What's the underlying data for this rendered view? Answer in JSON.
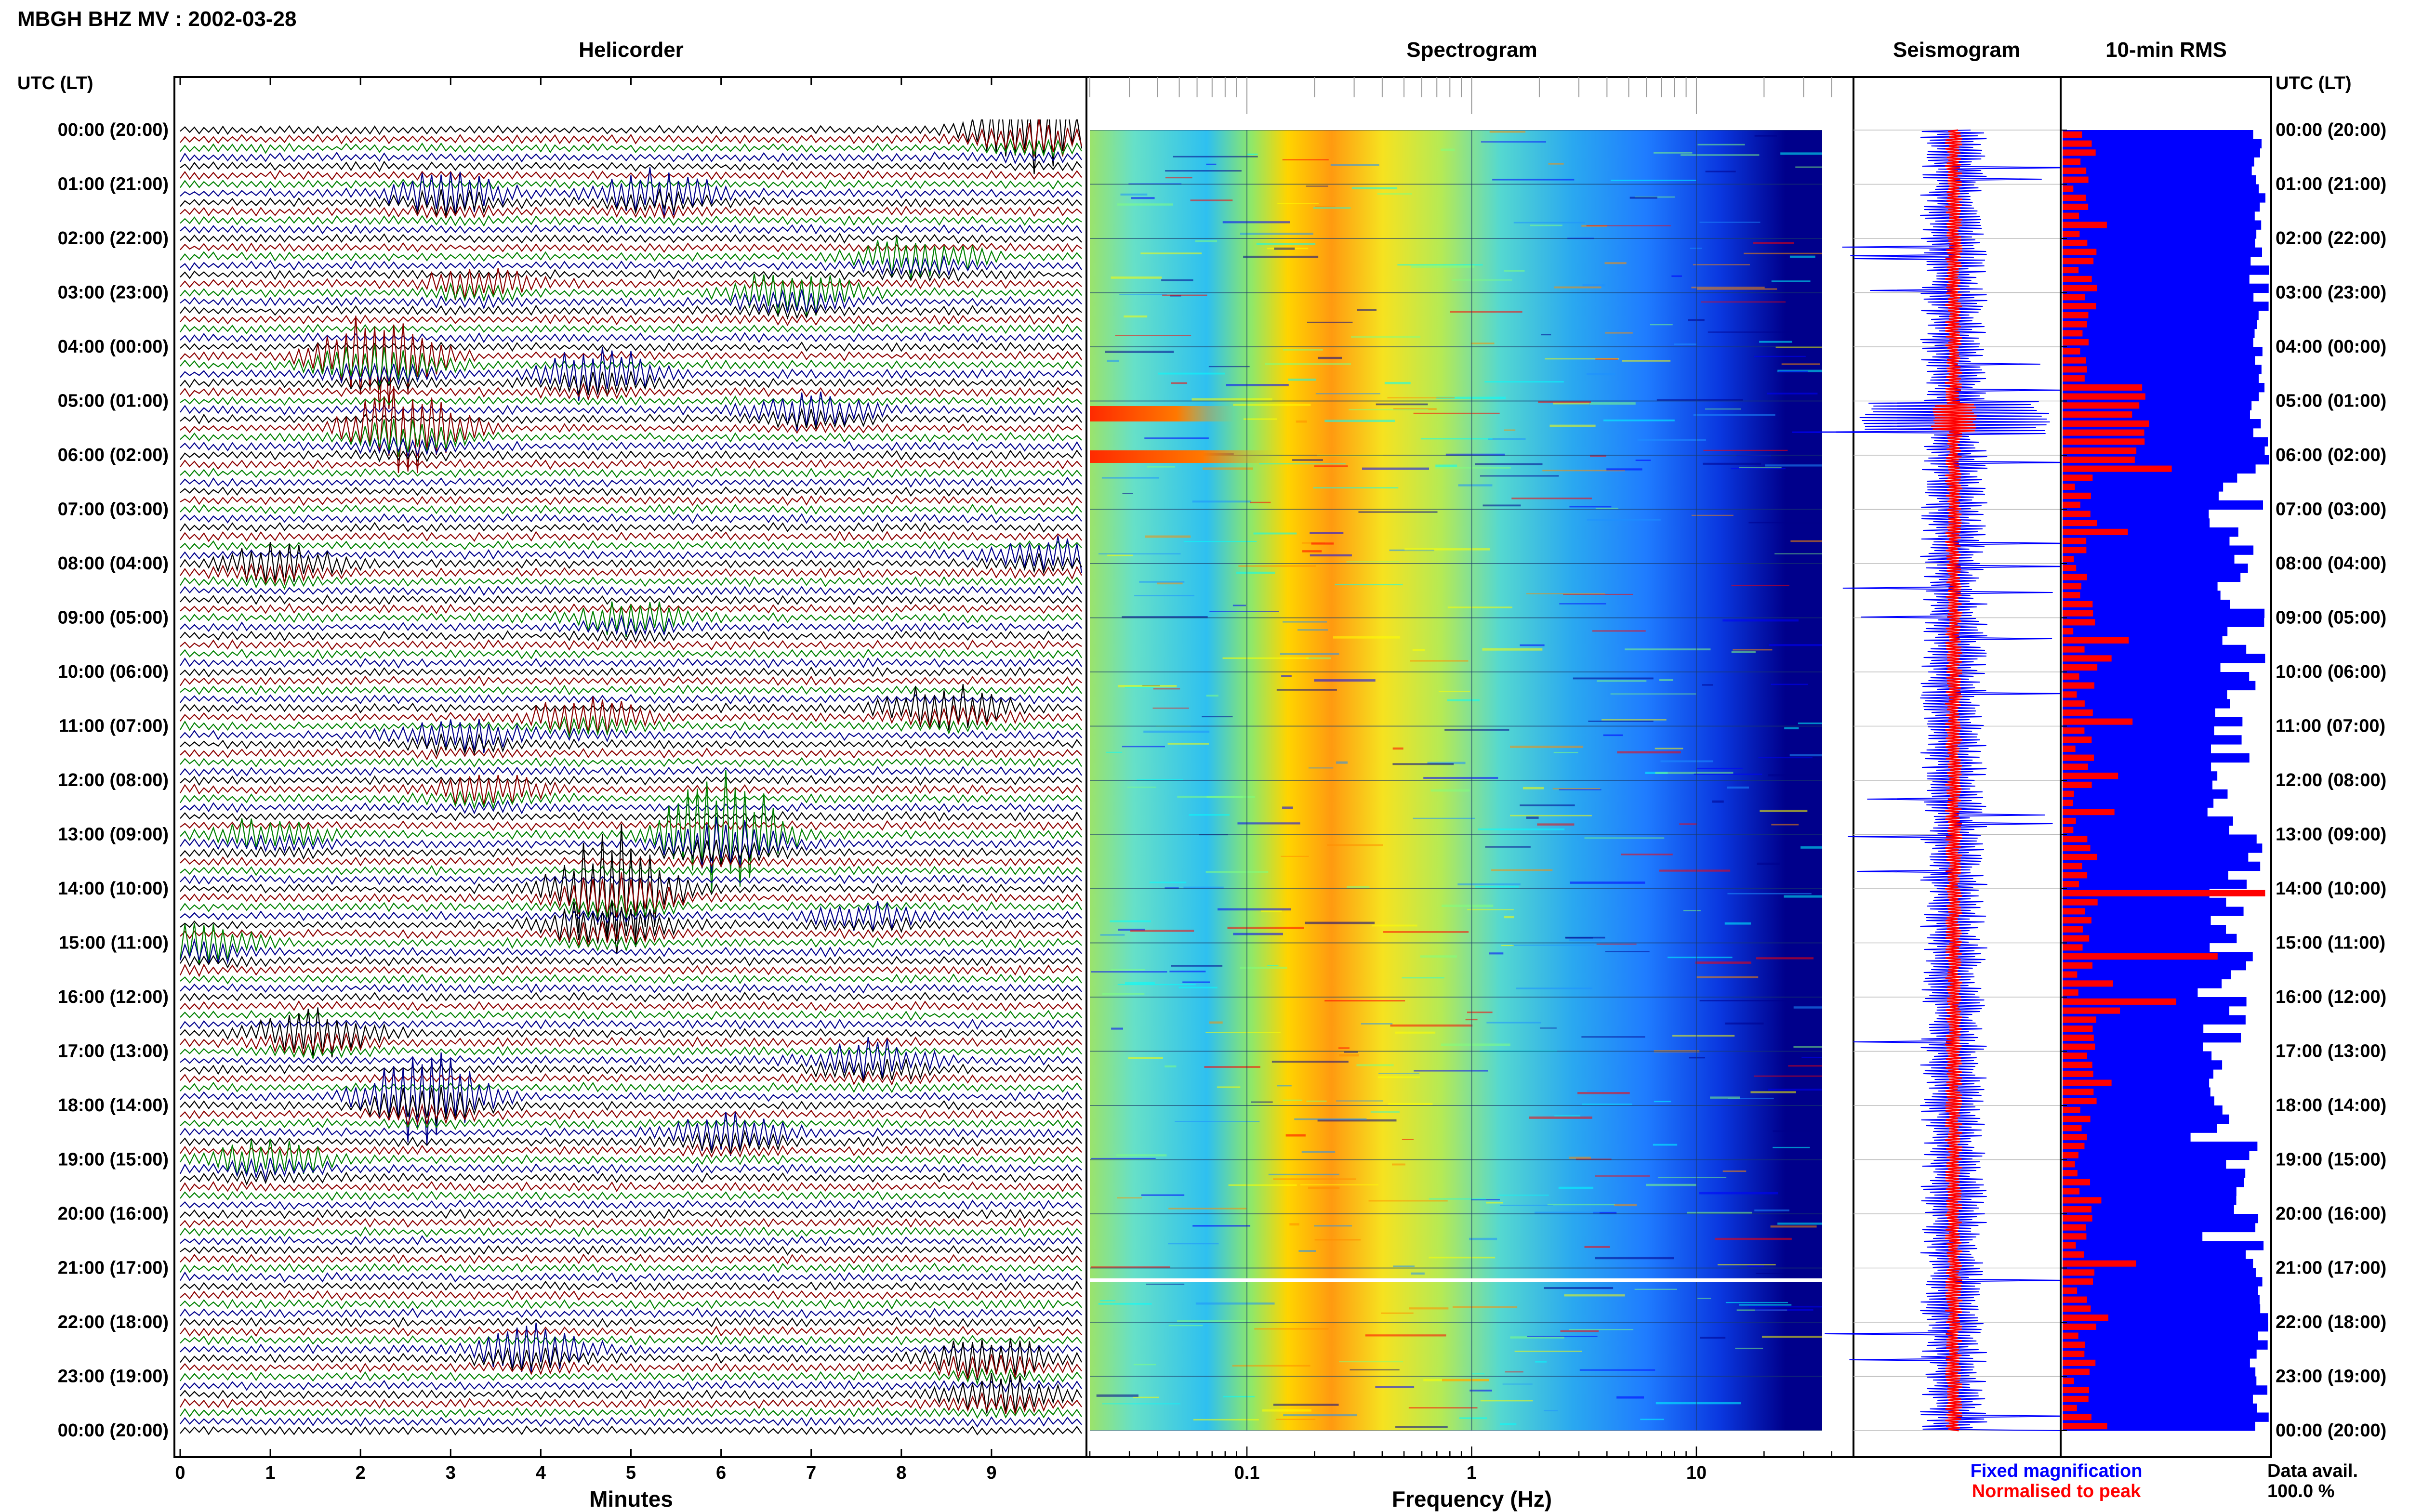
{
  "header": {
    "title": "MBGH BHZ MV : 2002-03-28",
    "utc_label_left": "UTC (LT)",
    "utc_label_right": "UTC (LT)"
  },
  "panels": {
    "helicorder": "Helicorder",
    "spectrogram": "Spectrogram",
    "seismogram": "Seismogram",
    "rms": "10-min RMS"
  },
  "time_labels": [
    "00:00 (20:00)",
    "01:00 (21:00)",
    "02:00 (22:00)",
    "03:00 (23:00)",
    "04:00 (00:00)",
    "05:00 (01:00)",
    "06:00 (02:00)",
    "07:00 (03:00)",
    "08:00 (04:00)",
    "09:00 (05:00)",
    "10:00 (06:00)",
    "11:00 (07:00)",
    "12:00 (08:00)",
    "13:00 (09:00)",
    "14:00 (10:00)",
    "15:00 (11:00)",
    "16:00 (12:00)",
    "17:00 (13:00)",
    "18:00 (14:00)",
    "19:00 (15:00)",
    "20:00 (16:00)",
    "21:00 (17:00)",
    "22:00 (18:00)",
    "23:00 (19:00)",
    "00:00 (20:00)"
  ],
  "chart_data": [
    {
      "type": "line",
      "title": "Helicorder",
      "xlabel": "Minutes",
      "ylabel": "UTC (LT)",
      "xlim": [
        0,
        10
      ],
      "x_ticks": [
        "0",
        "1",
        "2",
        "3",
        "4",
        "5",
        "6",
        "7",
        "8",
        "9"
      ],
      "trace_colors": [
        "#000000",
        "#8b0000",
        "#008000",
        "#00008b"
      ],
      "rows_per_hour": 6,
      "events": [
        {
          "hour": 0.0,
          "minute": 9.5,
          "amp": 1.6,
          "color": "#8b0000"
        },
        {
          "hour": 1.1,
          "minute": 5.3,
          "amp": 1.2,
          "color": "#8b0000"
        },
        {
          "hour": 1.2,
          "minute": 3.0,
          "amp": 0.8,
          "color": "#00008b"
        },
        {
          "hour": 2.3,
          "minute": 8.2,
          "amp": 0.9,
          "color": "#8b0000"
        },
        {
          "hour": 2.8,
          "minute": 3.3,
          "amp": 0.7,
          "color": "#008000"
        },
        {
          "hour": 3.0,
          "minute": 6.8,
          "amp": 0.9,
          "color": "#000000"
        },
        {
          "hour": 4.2,
          "minute": 2.2,
          "amp": 1.9,
          "color": "#8b0000"
        },
        {
          "hour": 4.5,
          "minute": 4.6,
          "amp": 1.0,
          "color": "#00008b"
        },
        {
          "hour": 5.1,
          "minute": 7.0,
          "amp": 0.9,
          "color": "#000000"
        },
        {
          "hour": 5.5,
          "minute": 2.5,
          "amp": 1.5,
          "color": "#008000"
        },
        {
          "hour": 7.9,
          "minute": 1.1,
          "amp": 1.3,
          "color": "#008000"
        },
        {
          "hour": 7.8,
          "minute": 9.7,
          "amp": 0.8,
          "color": "#000000"
        },
        {
          "hour": 9.0,
          "minute": 5.0,
          "amp": 0.6,
          "color": "#000000"
        },
        {
          "hour": 10.6,
          "minute": 8.5,
          "amp": 1.3,
          "color": "#000000"
        },
        {
          "hour": 10.8,
          "minute": 4.5,
          "amp": 0.8,
          "color": "#8b0000"
        },
        {
          "hour": 11.1,
          "minute": 3.1,
          "amp": 1.0,
          "color": "#008000"
        },
        {
          "hour": 12.1,
          "minute": 3.4,
          "amp": 0.9,
          "color": "#00008b"
        },
        {
          "hour": 12.9,
          "minute": 1.0,
          "amp": 1.0,
          "color": "#00008b"
        },
        {
          "hour": 13.0,
          "minute": 6.0,
          "amp": 2.4,
          "color": "#008000"
        },
        {
          "hour": 14.0,
          "minute": 4.8,
          "amp": 2.2,
          "color": "#008000"
        },
        {
          "hour": 14.6,
          "minute": 4.7,
          "amp": 1.4,
          "color": "#00008b"
        },
        {
          "hour": 14.4,
          "minute": 7.6,
          "amp": 0.8,
          "color": "#008000"
        },
        {
          "hour": 15.0,
          "minute": 0.2,
          "amp": 0.8,
          "color": "#008000"
        },
        {
          "hour": 16.6,
          "minute": 1.5,
          "amp": 1.3,
          "color": "#8b0000"
        },
        {
          "hour": 17.2,
          "minute": 7.7,
          "amp": 0.7,
          "color": "#000000"
        },
        {
          "hour": 17.8,
          "minute": 2.7,
          "amp": 2.0,
          "color": "#008000"
        },
        {
          "hour": 18.5,
          "minute": 6.1,
          "amp": 0.7,
          "color": "#008000"
        },
        {
          "hour": 19.0,
          "minute": 1.0,
          "amp": 0.7,
          "color": "#00008b"
        },
        {
          "hour": 22.4,
          "minute": 3.9,
          "amp": 1.5,
          "color": "#8b0000"
        },
        {
          "hour": 22.7,
          "minute": 9.0,
          "amp": 0.8,
          "color": "#8b0000"
        },
        {
          "hour": 23.3,
          "minute": 9.1,
          "amp": 0.8,
          "color": "#000000"
        }
      ]
    },
    {
      "type": "heatmap",
      "title": "Spectrogram",
      "xlabel": "Frequency (Hz)",
      "x_scale": "log",
      "xlim": [
        0.02,
        50
      ],
      "x_ticks": [
        "0.1",
        "1",
        "10"
      ],
      "colormap": [
        "#00008b",
        "#0000ff",
        "#1e90ff",
        "#00ffff",
        "#7fff7f",
        "#ffff00",
        "#ff8c00",
        "#ff0000"
      ],
      "strong_events": [
        {
          "hour": 5.3,
          "fmax": 0.1
        },
        {
          "hour": 6.0,
          "fmax": 0.15
        }
      ],
      "data_gap_hour": 21.2
    },
    {
      "type": "line",
      "title": "Seismogram",
      "series": [
        {
          "name": "Fixed magnification",
          "color": "#0000ff"
        },
        {
          "name": "Normalised to peak",
          "color": "#ff0000"
        }
      ]
    },
    {
      "type": "bar",
      "title": "10-min RMS",
      "series_colors": {
        "fixed": "#0000ff",
        "normalised": "#ff0000"
      },
      "bins": 144,
      "data_availability_label": "Data avail.",
      "data_availability_value": "100.0 %"
    }
  ],
  "legend": {
    "fixed": "Fixed magnification",
    "normalised": "Normalised to peak"
  },
  "colors": {
    "fixed": "#0000ff",
    "normalised": "#ff0000"
  }
}
